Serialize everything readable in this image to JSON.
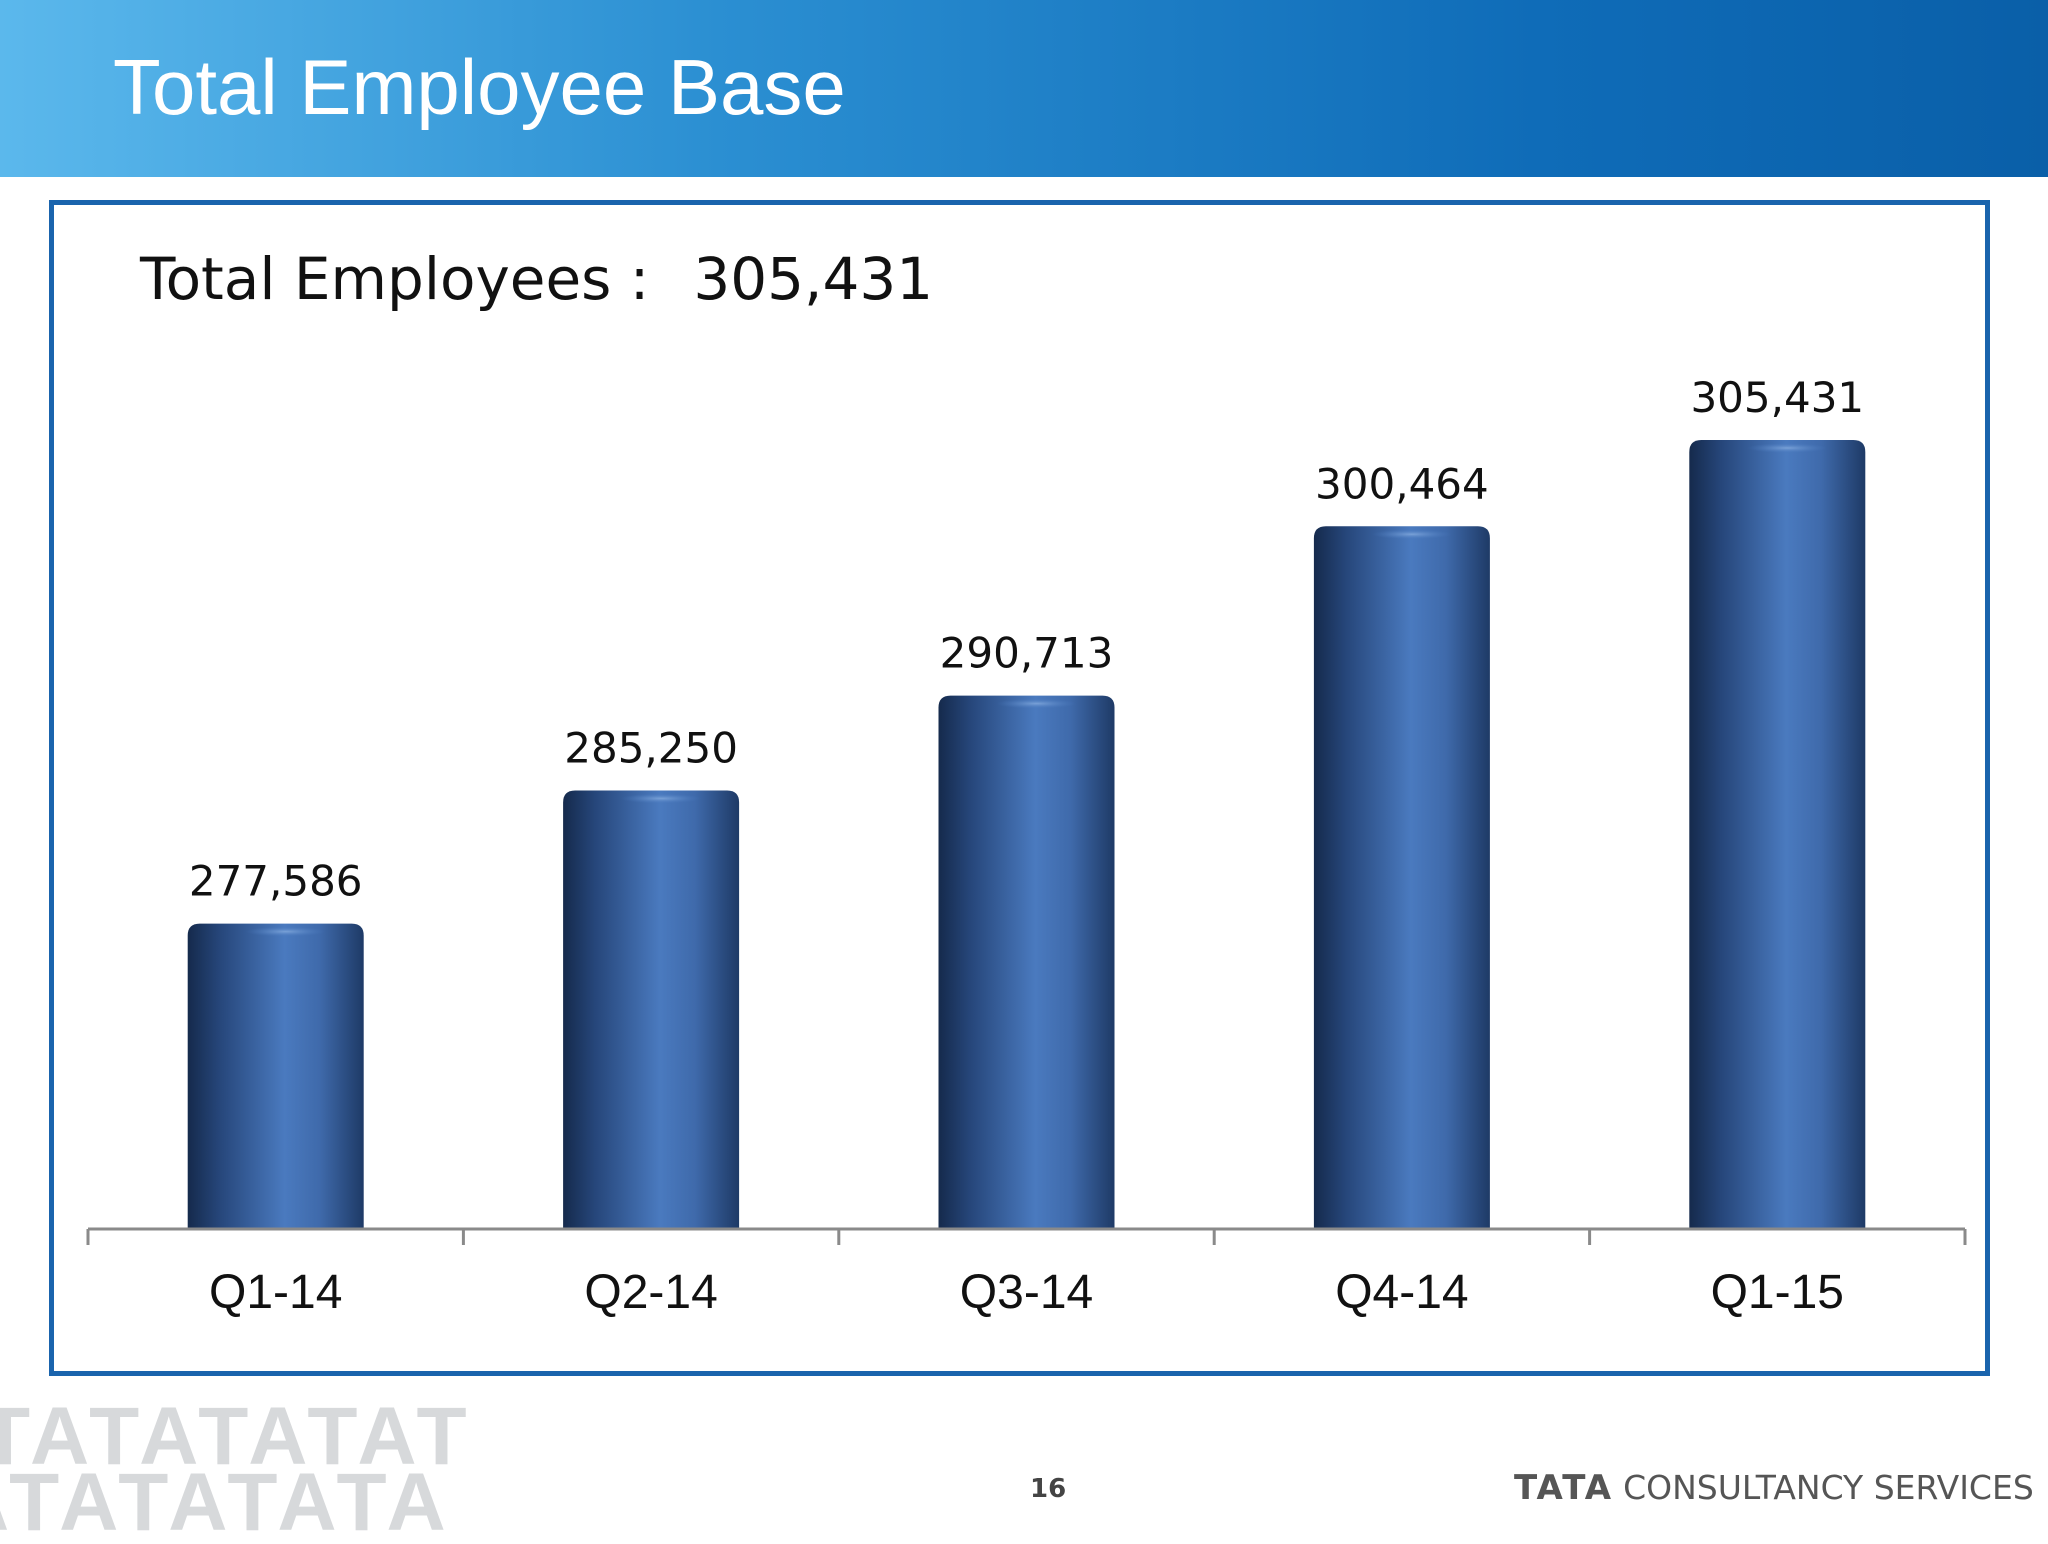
{
  "header": {
    "title": "Total Employee Base"
  },
  "summary": {
    "label": "Total Employees :",
    "value": "305,431"
  },
  "footer": {
    "page_number": "16",
    "brand_mark": "TATA",
    "brand_name": "CONSULTANCY SERVICES",
    "pattern_rows": [
      "TATATATAT",
      "ATATATATA"
    ]
  },
  "colors": {
    "header_gradient_start": "#5bb8ec",
    "header_gradient_end": "#0a5fa8",
    "frame_border": "#1a64ad",
    "bar_dark": "#152a4c",
    "bar_light": "#4a7abf"
  },
  "chart_data": {
    "type": "bar",
    "categories": [
      "Q1-14",
      "Q2-14",
      "Q3-14",
      "Q4-14",
      "Q1-15"
    ],
    "values": [
      277586,
      285250,
      290713,
      300464,
      305431
    ],
    "data_labels": [
      "277,586",
      "285,250",
      "290,713",
      "300,464",
      "305,431"
    ],
    "title": "",
    "xlabel": "",
    "ylabel": "",
    "grid": false,
    "legend": "none"
  }
}
